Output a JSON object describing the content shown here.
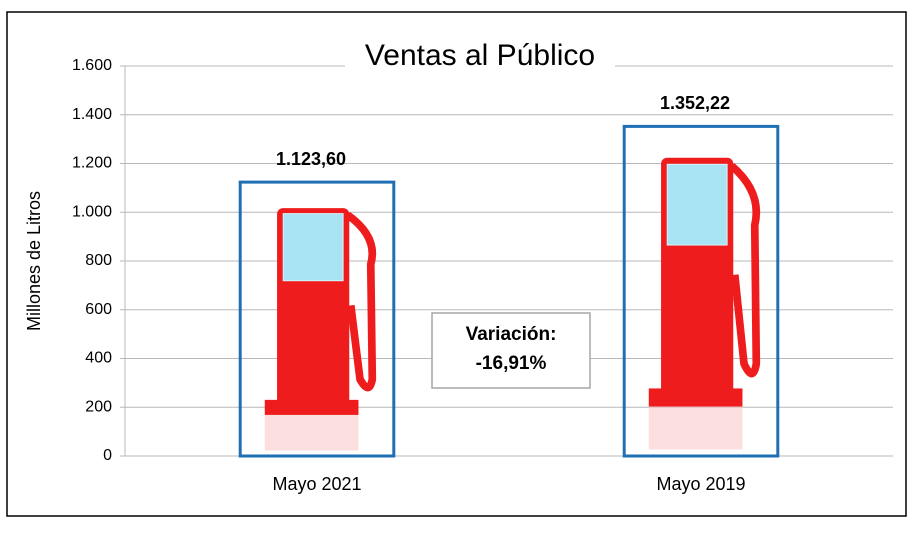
{
  "chart_data": {
    "type": "bar",
    "title": "Ventas al Público",
    "y_label": "Millones de Litros",
    "categories": [
      "Mayo 2021",
      "Mayo 2019"
    ],
    "values": [
      1123.6,
      1352.22
    ],
    "value_labels": [
      "1.123,60",
      "1.352,22"
    ],
    "color": "#1f6fb5",
    "ylim": [
      0,
      1600
    ],
    "yticks": [
      0,
      200,
      400,
      600,
      800,
      {
        "value": 1000,
        "label": "1.000"
      },
      {
        "value": 1200,
        "label": "1.200"
      },
      {
        "value": 1400,
        "label": "1.400"
      },
      {
        "value": 1600,
        "label": "1.600"
      }
    ],
    "grid": true,
    "annotation": [
      "Variación:",
      "-16,91%"
    ]
  }
}
